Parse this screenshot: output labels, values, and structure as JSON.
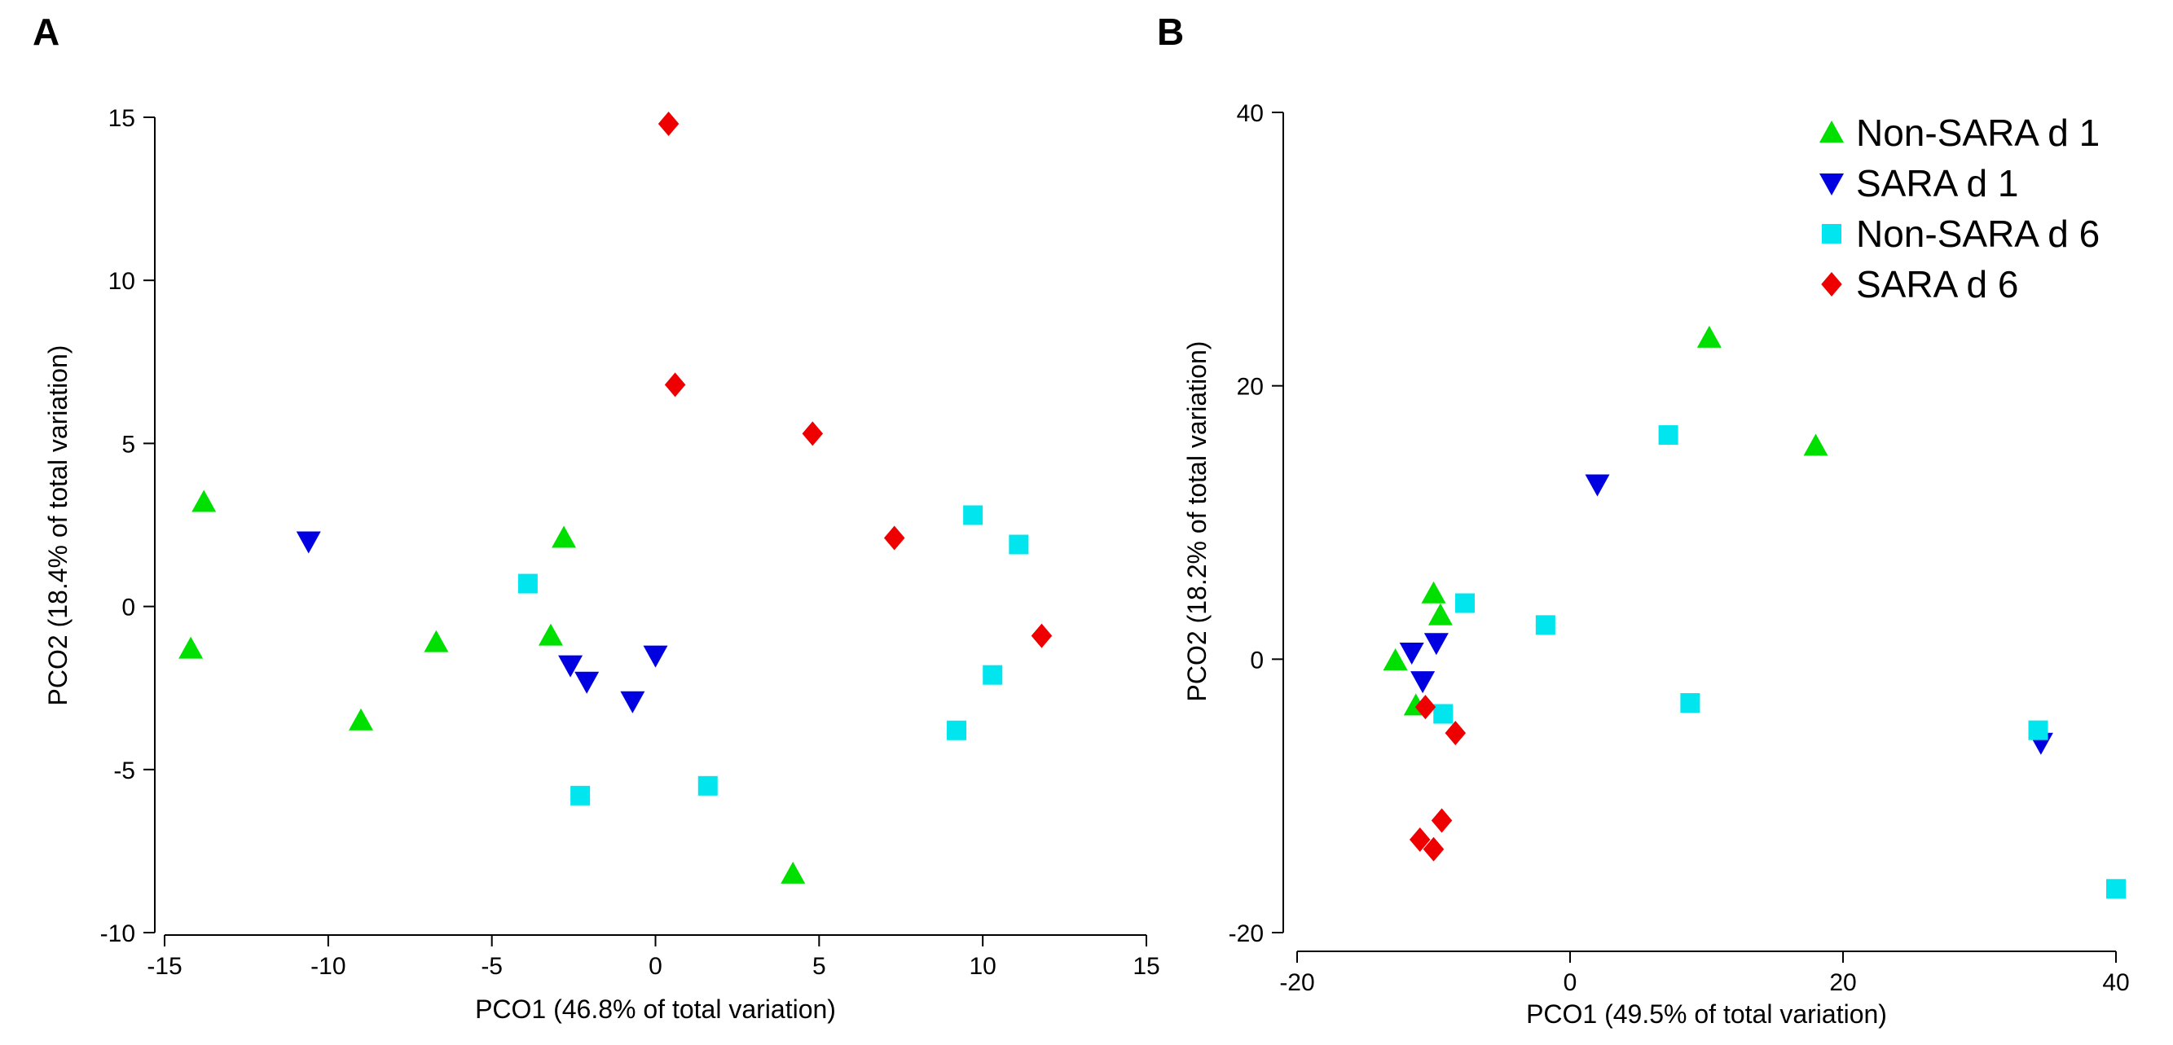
{
  "chart_data": [
    {
      "panel": "A",
      "type": "scatter",
      "xlabel": "PCO1 (46.8% of total variation)",
      "ylabel": "PCO2 (18.4% of total variation)",
      "xlim": [
        -15,
        15
      ],
      "ylim": [
        -10,
        15
      ],
      "xticks": [
        -15,
        -10,
        -5,
        0,
        5,
        10,
        15
      ],
      "yticks": [
        -10,
        -5,
        0,
        5,
        10,
        15
      ],
      "legend": false,
      "series": [
        {
          "name": "Non-SARA d 1",
          "marker": "triangle-up",
          "color": "#00e000",
          "points": [
            [
              -13.8,
              3.2
            ],
            [
              -14.2,
              -1.3
            ],
            [
              -9.0,
              -3.5
            ],
            [
              -6.7,
              -1.1
            ],
            [
              -2.8,
              2.1
            ],
            [
              -3.2,
              -0.9
            ],
            [
              4.2,
              -8.2
            ]
          ]
        },
        {
          "name": "SARA d 1",
          "marker": "triangle-down",
          "color": "#0000e0",
          "points": [
            [
              -10.6,
              2.0
            ],
            [
              -2.6,
              -1.8
            ],
            [
              -2.1,
              -2.3
            ],
            [
              -0.7,
              -2.9
            ],
            [
              0.0,
              -1.5
            ]
          ]
        },
        {
          "name": "Non-SARA d 6",
          "marker": "square",
          "color": "#00e5ee",
          "points": [
            [
              -3.9,
              0.7
            ],
            [
              -2.3,
              -5.8
            ],
            [
              1.6,
              -5.5
            ],
            [
              9.2,
              -3.8
            ],
            [
              9.7,
              2.8
            ],
            [
              10.3,
              -2.1
            ],
            [
              11.1,
              1.9
            ]
          ]
        },
        {
          "name": "SARA d 6",
          "marker": "diamond",
          "color": "#ee0000",
          "points": [
            [
              0.4,
              14.8
            ],
            [
              0.6,
              6.8
            ],
            [
              4.8,
              5.3
            ],
            [
              7.3,
              2.1
            ],
            [
              11.8,
              -0.9
            ]
          ]
        }
      ]
    },
    {
      "panel": "B",
      "type": "scatter",
      "xlabel": "PCO1 (49.5% of total variation)",
      "ylabel": "PCO2 (18.2% of total variation)",
      "xlim": [
        -20,
        40
      ],
      "ylim": [
        -20,
        40
      ],
      "xticks": [
        -20,
        0,
        20,
        40
      ],
      "yticks": [
        -20,
        0,
        20,
        40
      ],
      "legend": true,
      "series": [
        {
          "name": "Non-SARA d 1",
          "marker": "triangle-up",
          "color": "#00e000",
          "points": [
            [
              10.2,
              23.5
            ],
            [
              18.0,
              15.6
            ],
            [
              -10.0,
              4.8
            ],
            [
              -9.5,
              3.2
            ],
            [
              -12.8,
              -0.1
            ],
            [
              -11.3,
              -3.4
            ]
          ]
        },
        {
          "name": "SARA d 1",
          "marker": "triangle-down",
          "color": "#0000e0",
          "points": [
            [
              2.0,
              12.8
            ],
            [
              -11.6,
              0.5
            ],
            [
              -9.8,
              1.2
            ],
            [
              -10.8,
              -1.6
            ],
            [
              34.5,
              -6.1
            ]
          ]
        },
        {
          "name": "Non-SARA d 6",
          "marker": "square",
          "color": "#00e5ee",
          "points": [
            [
              7.2,
              16.4
            ],
            [
              -7.7,
              4.1
            ],
            [
              -1.8,
              2.5
            ],
            [
              -9.3,
              -4.0
            ],
            [
              8.8,
              -3.2
            ],
            [
              34.3,
              -5.2
            ],
            [
              40.0,
              -16.8
            ]
          ]
        },
        {
          "name": "SARA d 6",
          "marker": "diamond",
          "color": "#ee0000",
          "points": [
            [
              -10.6,
              -3.5
            ],
            [
              -8.4,
              -5.4
            ],
            [
              -9.4,
              -11.8
            ],
            [
              -11.0,
              -13.2
            ],
            [
              -10.0,
              -13.9
            ]
          ]
        }
      ]
    }
  ],
  "panel_labels": [
    "A",
    "B"
  ]
}
